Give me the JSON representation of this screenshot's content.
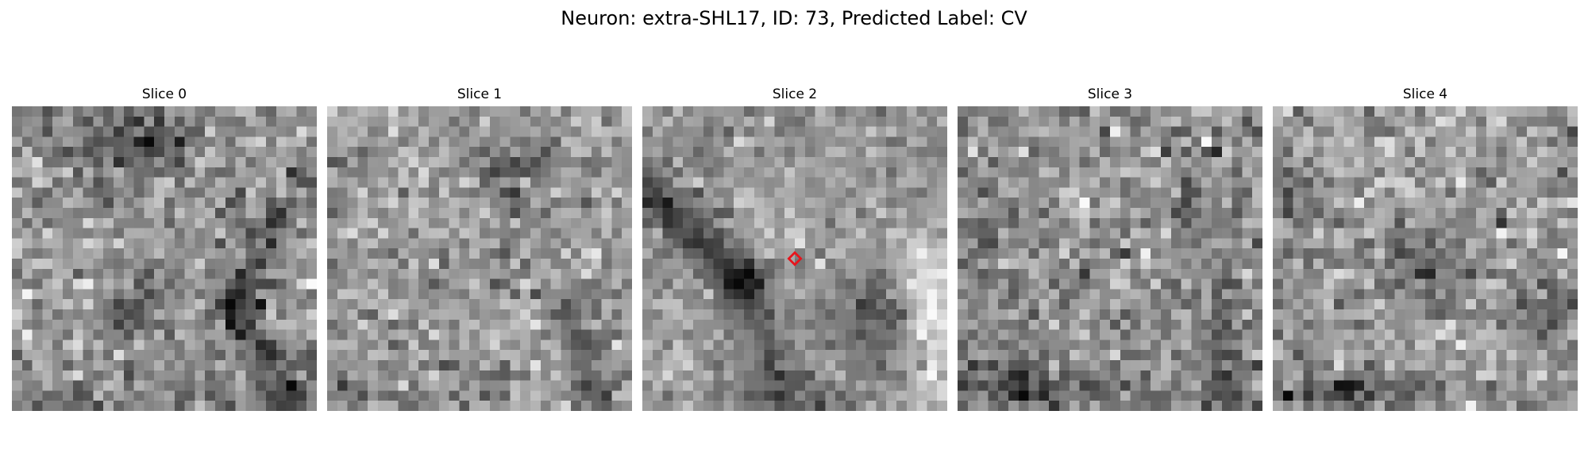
{
  "figure": {
    "title": "Neuron: extra-SHL17, ID: 73, Predicted Label: CV"
  },
  "colors": {
    "marker": "#e8141c",
    "background": "#ffffff"
  },
  "slices": [
    {
      "title": "Slice 0"
    },
    {
      "title": "Slice 1"
    },
    {
      "title": "Slice 2"
    },
    {
      "title": "Slice 3"
    },
    {
      "title": "Slice 4"
    }
  ]
}
